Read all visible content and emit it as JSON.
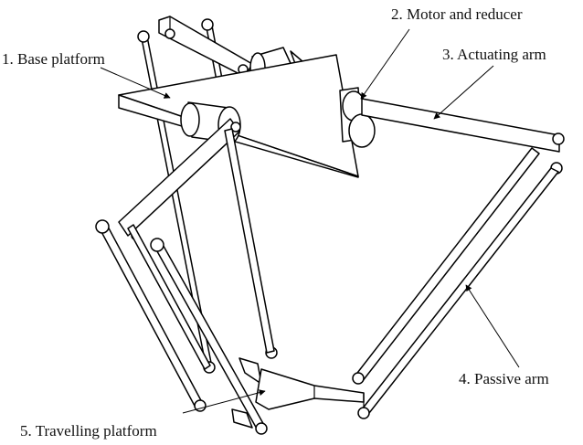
{
  "labels": {
    "base_platform": "1. Base platform",
    "motor_reducer": "2. Motor and reducer",
    "actuating_arm": "3. Actuating arm",
    "passive_arm": "4. Passive arm",
    "travelling_platform": "5. Travelling platform"
  }
}
